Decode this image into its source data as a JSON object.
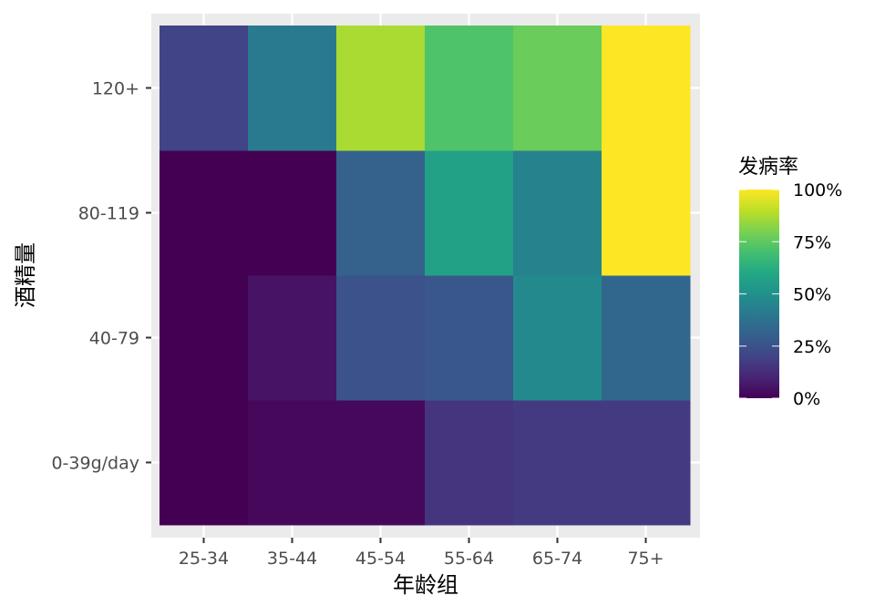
{
  "chart_data": {
    "type": "heatmap",
    "title": "",
    "xlabel": "年龄组",
    "ylabel": "酒精量",
    "x_categories": [
      "25-34",
      "35-44",
      "45-54",
      "55-64",
      "65-74",
      "75+"
    ],
    "y_categories": [
      "0-39g/day",
      "40-79",
      "80-119",
      "120+"
    ],
    "values": [
      [
        0.0,
        0.02,
        0.02,
        0.15,
        0.17,
        0.17
      ],
      [
        0.0,
        0.05,
        0.25,
        0.27,
        0.47,
        0.33
      ],
      [
        0.0,
        0.0,
        0.31,
        0.57,
        0.44,
        1.0
      ],
      [
        0.2,
        0.41,
        0.87,
        0.72,
        0.77,
        1.0
      ]
    ],
    "colorscale": "viridis",
    "color_range": [
      0,
      1
    ],
    "legend": {
      "title": "发病率",
      "position": "right",
      "ticks": [
        {
          "value": 0,
          "label": "0%"
        },
        {
          "value": 0.25,
          "label": "25%"
        },
        {
          "value": 0.5,
          "label": "50%"
        },
        {
          "value": 0.75,
          "label": "75%"
        },
        {
          "value": 1,
          "label": "100%"
        }
      ]
    },
    "grid": true,
    "panel_background": "#ebebeb"
  }
}
